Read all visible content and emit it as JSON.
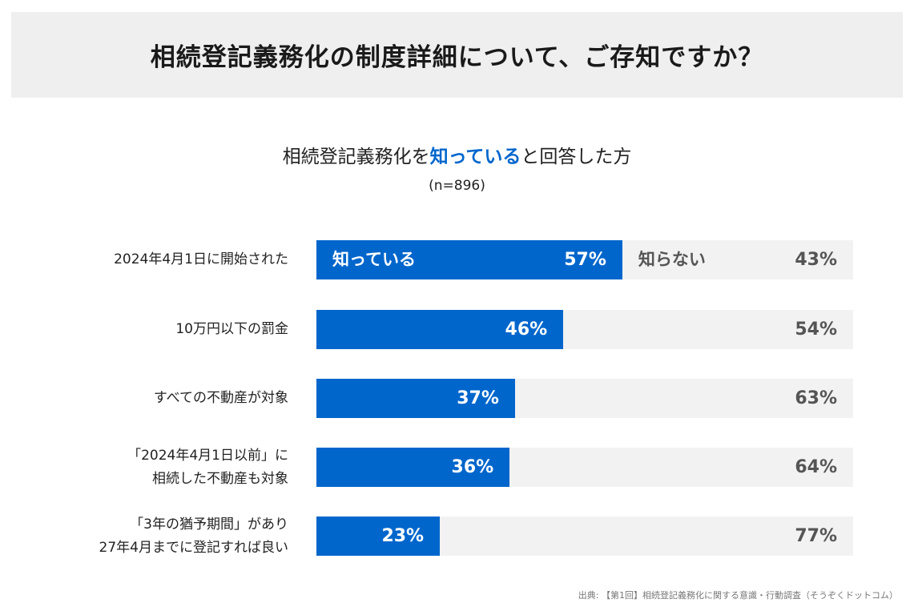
{
  "header": {
    "title": "相続登記義務化の制度詳細について、ご存知ですか？"
  },
  "chart_data": {
    "type": "bar",
    "orientation": "horizontal-stacked",
    "title_pre": "相続登記義務化を",
    "title_highlight": "知っている",
    "title_post": "と回答した方",
    "subtitle": "(n=896)",
    "legend": {
      "yes": "知っている",
      "no": "知らない"
    },
    "categories": [
      [
        "2024年4月1日に開始された"
      ],
      [
        "10万円以下の罰金"
      ],
      [
        "すべての不動産が対象"
      ],
      [
        "「2024年4月1日以前」に",
        "相続した不動産も対象"
      ],
      [
        "「3年の猶予期間」があり",
        "27年4月までに登記すれば良い"
      ]
    ],
    "series": [
      {
        "name": "知っている",
        "values": [
          57,
          46,
          37,
          36,
          23
        ],
        "color": "#0066cc"
      },
      {
        "name": "知らない",
        "values": [
          43,
          54,
          63,
          64,
          77
        ],
        "color": "#f2f2f2"
      }
    ],
    "unit": "%",
    "xlim": [
      0,
      100
    ]
  },
  "source": "出典: 【第1回】相続登記義務化に関する意識・行動調査（そうぞくドットコム）"
}
